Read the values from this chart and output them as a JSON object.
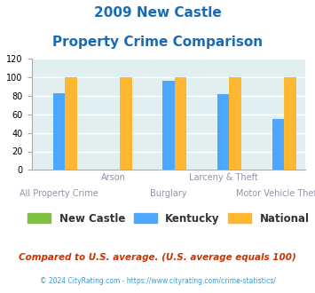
{
  "title_line1": "2009 New Castle",
  "title_line2": "Property Crime Comparison",
  "categories": [
    "All Property Crime",
    "Arson",
    "Burglary",
    "Larceny & Theft",
    "Motor Vehicle Theft"
  ],
  "x_labels_row1": [
    "",
    "Arson",
    "",
    "Larceny & Theft",
    ""
  ],
  "x_labels_row2": [
    "All Property Crime",
    "",
    "Burglary",
    "",
    "Motor Vehicle Theft"
  ],
  "series": {
    "New Castle": [
      0,
      0,
      0,
      0,
      0
    ],
    "Kentucky": [
      83,
      0,
      96,
      82,
      55
    ],
    "National": [
      100,
      100,
      100,
      100,
      100
    ]
  },
  "colors": {
    "New Castle": "#80c040",
    "Kentucky": "#4da6ff",
    "National": "#ffb732"
  },
  "ylim": [
    0,
    120
  ],
  "yticks": [
    0,
    20,
    40,
    60,
    80,
    100,
    120
  ],
  "title_color": "#1a6bb5",
  "xlabel_color": "#9b8faa",
  "background_color": "#ffffff",
  "plot_bg": "#e2eff1",
  "grid_color": "#ffffff",
  "legend_labels": [
    "New Castle",
    "Kentucky",
    "National"
  ],
  "footnote": "Compared to U.S. average. (U.S. average equals 100)",
  "footnote2": "© 2024 CityRating.com - https://www.cityrating.com/crime-statistics/",
  "footnote_color": "#cc3300",
  "footnote2_color": "#4499cc"
}
